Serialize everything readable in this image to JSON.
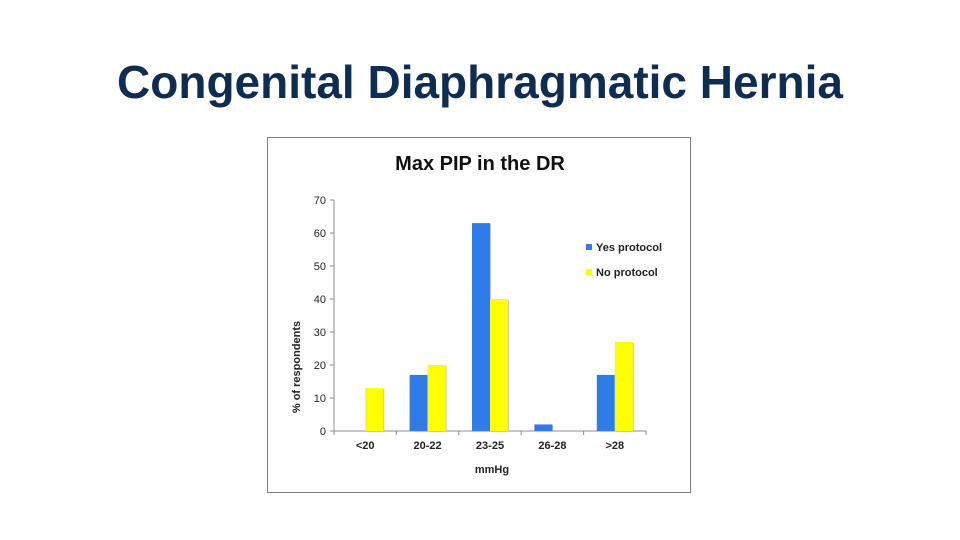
{
  "slide": {
    "title": "Congenital Diaphragmatic Hernia"
  },
  "chart_data": {
    "type": "bar",
    "title": "Max PIP in the DR",
    "xlabel": "mmHg",
    "ylabel": "% of respondents",
    "categories": [
      "<20",
      "20-22",
      "23-25",
      "26-28",
      ">28"
    ],
    "series": [
      {
        "name": "Yes protocol",
        "color": "#2f7bea",
        "values": [
          0,
          17,
          63,
          2,
          17
        ]
      },
      {
        "name": "No protocol",
        "color": "#ffff00",
        "values": [
          13,
          20,
          40,
          0,
          27
        ]
      }
    ],
    "ylim": [
      0,
      70
    ],
    "yticks": [
      0,
      10,
      20,
      30,
      40,
      50,
      60,
      70
    ],
    "grid": false,
    "legend_position": "right"
  }
}
